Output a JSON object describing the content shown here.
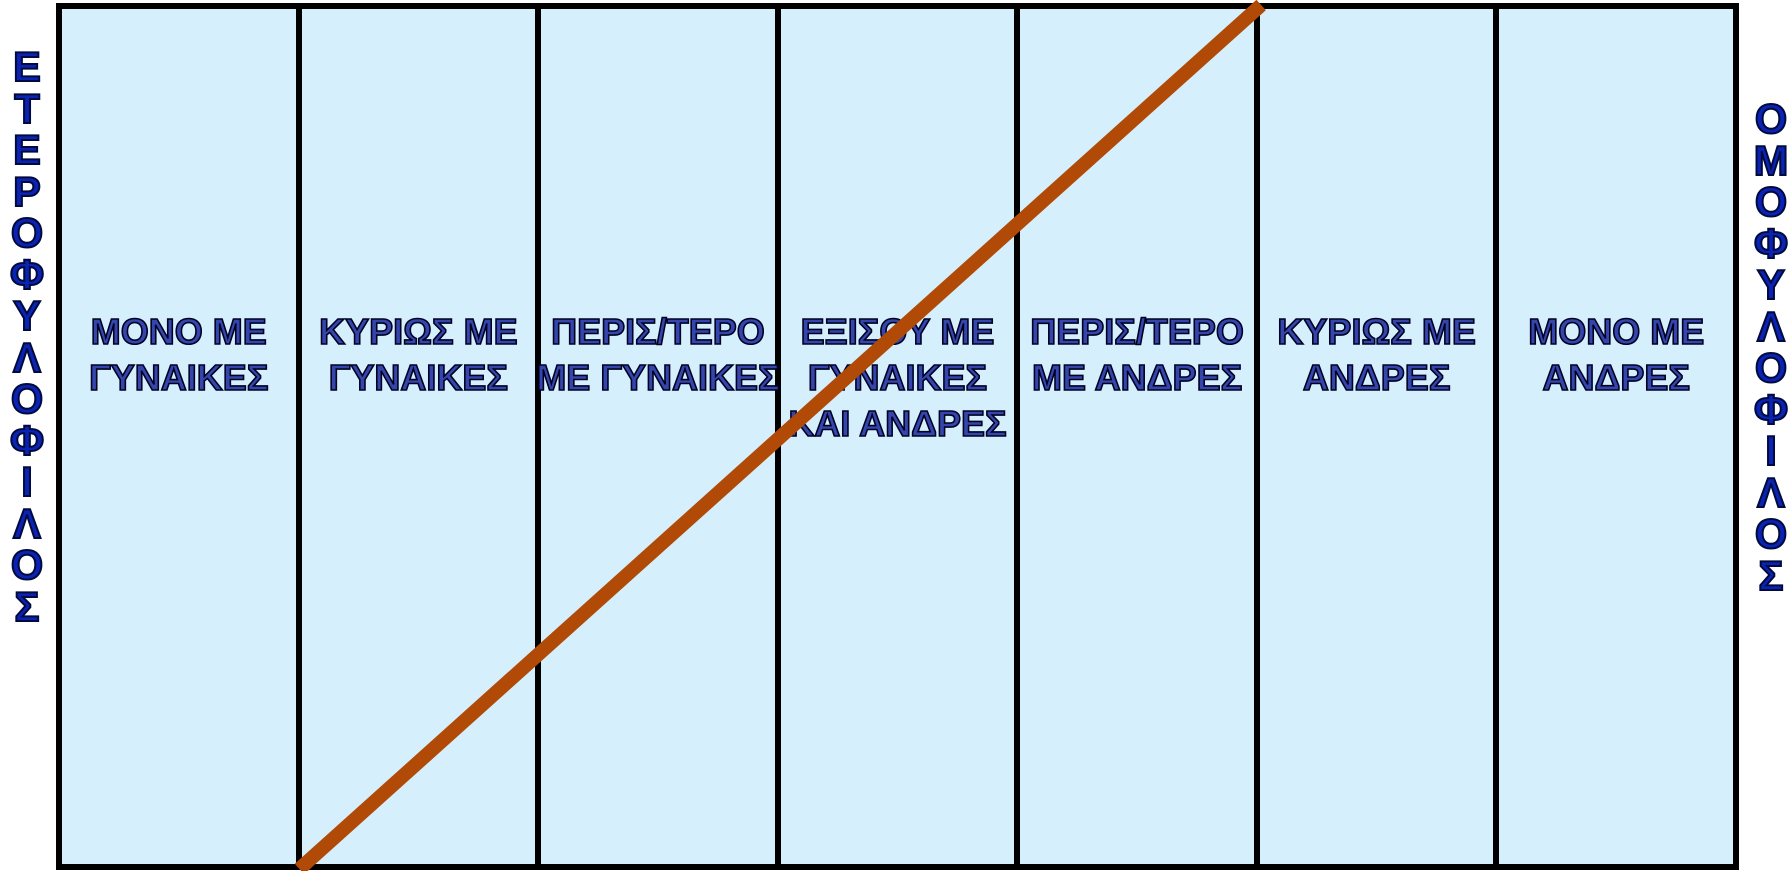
{
  "left_label": "ΕΤΕΡΟΦΥΛΟΦΙΛΟΣ",
  "right_label": "ΟΜΟΦΥΛΟΦΙΛΟΣ",
  "columns": [
    {
      "label": "ΜΟΝΟ ΜΕ\nΓΥΝΑΙΚΕΣ"
    },
    {
      "label": "ΚΥΡΙΩΣ ΜΕ\nΓΥΝΑΙΚΕΣ"
    },
    {
      "label": "ΠΕΡΙΣ/ΤΕΡΟ\nΜΕ ΓΥΝΑΙΚΕΣ"
    },
    {
      "label": "ΕΞΙΣΟΥ ΜΕ\nΓΥΝΑΙΚΕΣ\nΚΑΙ ΑΝΔΡΕΣ"
    },
    {
      "label": "ΠΕΡΙΣ/ΤΕΡΟ\nΜΕ ΑΝΔΡΕΣ"
    },
    {
      "label": "ΚΥΡΙΩΣ ΜΕ\nΑΝΔΡΕΣ"
    },
    {
      "label": "ΜΟΝΟ ΜΕ\nΑΝΔΡΕΣ"
    }
  ],
  "trend_line": {
    "from_column": 2,
    "to_column": 6,
    "color": "#b04a06"
  },
  "colors": {
    "cell_fill": "#d5f0fc",
    "label_text": "#3446ac",
    "side_text": "#0a23b4",
    "border": "#000000"
  }
}
